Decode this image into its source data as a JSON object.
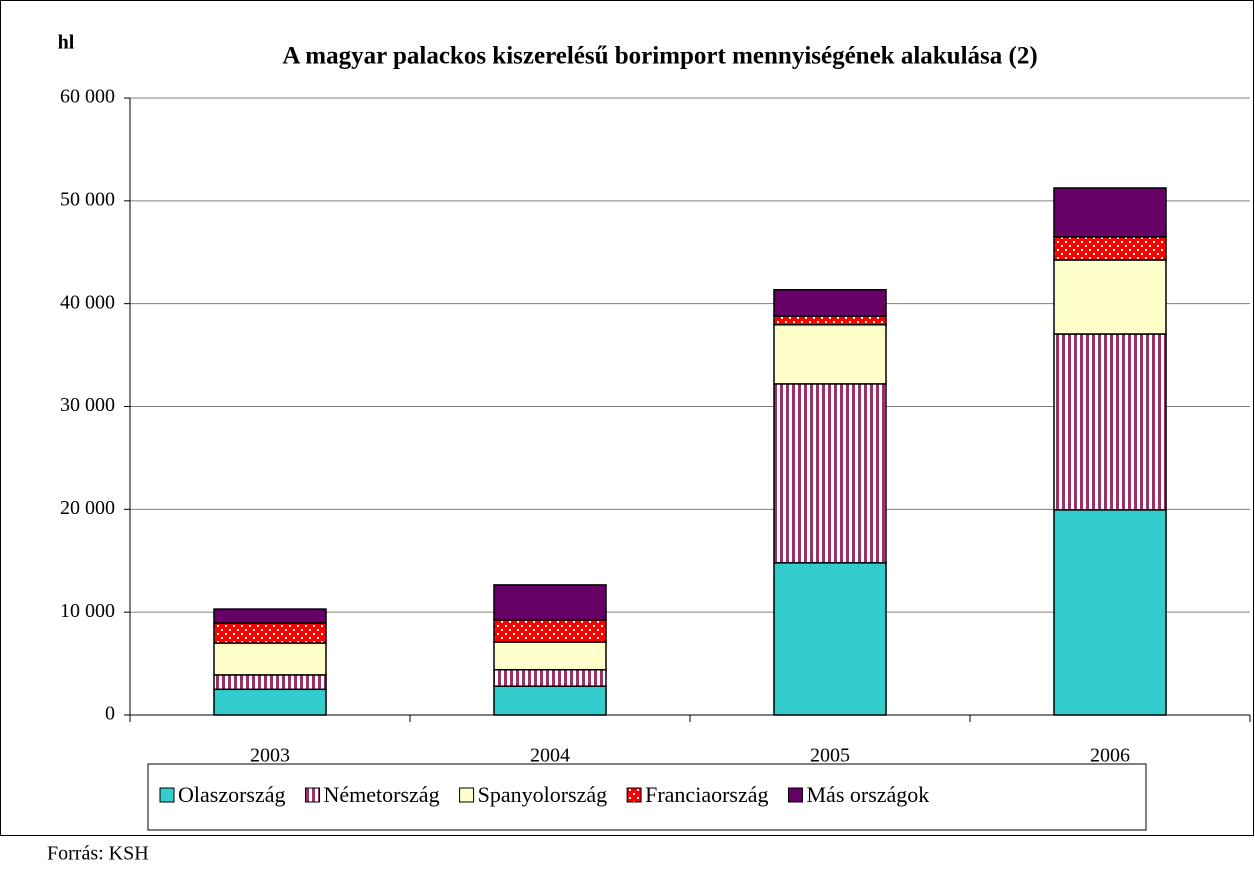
{
  "chart_data": {
    "type": "stacked-bar",
    "title": "A magyar palackos kiszerelésű borimport mennyiségének alakulása (2)",
    "y_label": "hl",
    "source": "Forrás: KSH",
    "categories": [
      "2003",
      "2004",
      "2005",
      "2006"
    ],
    "series": [
      {
        "name": "Olaszország",
        "color": "#33cccc",
        "values": [
          2500,
          2800,
          14800,
          19950
        ]
      },
      {
        "name": "Németország",
        "color": "#993366",
        "pattern": "vertical-stripes",
        "values": [
          1400,
          1600,
          17400,
          17100
        ]
      },
      {
        "name": "Spanyolország",
        "color": "#ffffcc",
        "values": [
          3100,
          2700,
          5750,
          7200
        ]
      },
      {
        "name": "Franciaország",
        "color": "#ff0000",
        "pattern": "checker",
        "values": [
          1950,
          2150,
          850,
          2250
        ]
      },
      {
        "name": "Más országok",
        "color": "#660066",
        "values": [
          1350,
          3400,
          2550,
          4750
        ]
      }
    ],
    "ylim": [
      0,
      60000
    ],
    "yticks": [
      {
        "value": 0,
        "label": "0"
      },
      {
        "value": 10000,
        "label": "10 000"
      },
      {
        "value": 20000,
        "label": "20 000"
      },
      {
        "value": 30000,
        "label": "30 000"
      },
      {
        "value": 40000,
        "label": "40 000"
      },
      {
        "value": 50000,
        "label": "50 000"
      },
      {
        "value": 60000,
        "label": "60 000"
      }
    ],
    "grid": true,
    "legend": "bottom"
  }
}
